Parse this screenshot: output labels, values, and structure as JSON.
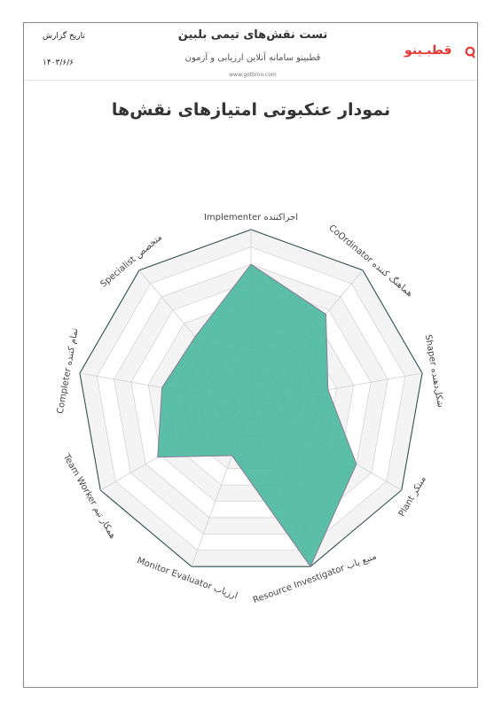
{
  "header": {
    "title": "تست نقش‌های تیمی بلبین",
    "subtitle": "قطبینو سامانه آنلاین ارزیابی و آزمون",
    "website": "www.gotbino.com",
    "date_label": "تاریخ گزارش",
    "date_value": "۱۴۰۳/۶/۶",
    "logo_text": "قطبـینو",
    "brand_color": "#e53935"
  },
  "page_heading": "نمودار عنکبوتی امتیازهای نقش‌ها",
  "chart_data": {
    "type": "radar",
    "title": "نمودار عنکبوتی امتیازهای نقش‌ها",
    "axes": [
      "Implementer اجراکننده",
      "CoOrdinator هماهنگ کننده",
      "Shaper شکل‌دهنده",
      "Plant مبتکر",
      "Resource Investigator منبع یاب",
      "Monitor Evaluator ارزیاب",
      "Team Worker همکار تیم",
      "Completer تمام کننده",
      "Specialist متخصص"
    ],
    "values": [
      0.8,
      0.67,
      0.45,
      0.7,
      1.0,
      0.32,
      0.62,
      0.52,
      0.5
    ],
    "range": [
      0,
      1
    ],
    "rings": 10,
    "fill_color": "#4fb99f",
    "stroke_color": "#8a7a9a"
  }
}
